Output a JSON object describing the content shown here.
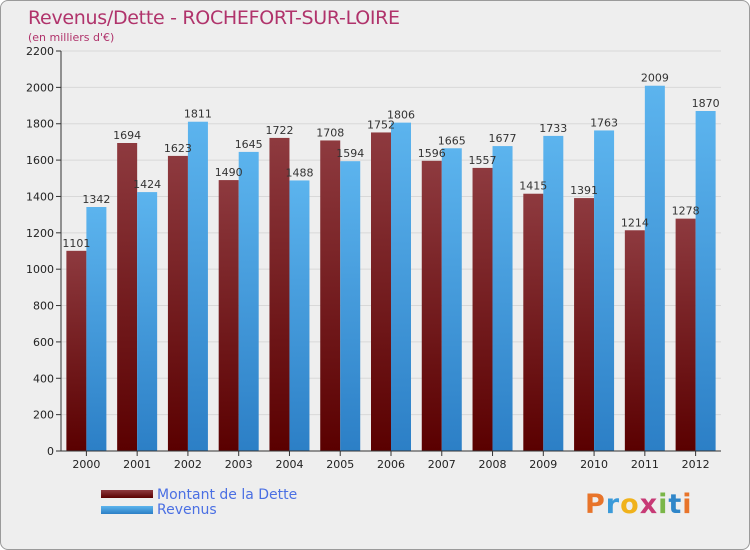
{
  "header": {
    "title": "Revenus/Dette - ROCHEFORT-SUR-LOIRE",
    "subtitle": "(en milliers d'€)"
  },
  "legend": {
    "debt_label": "Montant de la Dette",
    "revenue_label": "Revenus"
  },
  "logo": {
    "letters": [
      "P",
      "r",
      "o",
      "x",
      "i",
      "t",
      "i"
    ]
  },
  "colors": {
    "title": "#b0336b",
    "debt_top": "#8e3a3f",
    "debt_bottom": "#5a0000",
    "revenue_top": "#5cb4ee",
    "revenue_bottom": "#2c7fc6",
    "legend_text": "#4a6fe3",
    "logo": [
      "#e8742a",
      "#3a9ad9",
      "#f0b21b",
      "#c73a76",
      "#7ab648",
      "#2f86c9",
      "#e8742a"
    ]
  },
  "chart_data": {
    "type": "bar",
    "title": "Revenus/Dette - ROCHEFORT-SUR-LOIRE",
    "ylabel": "(en milliers d'€)",
    "xlabel": "",
    "categories": [
      "2000",
      "2001",
      "2002",
      "2003",
      "2004",
      "2005",
      "2006",
      "2007",
      "2008",
      "2009",
      "2010",
      "2011",
      "2012"
    ],
    "ylim": [
      0,
      2200
    ],
    "yticks": [
      0,
      200,
      400,
      600,
      800,
      1000,
      1200,
      1400,
      1600,
      1800,
      2000,
      2200
    ],
    "grid": true,
    "series": [
      {
        "name": "Montant de la Dette",
        "values": [
          1101,
          1694,
          1623,
          1490,
          1722,
          1708,
          1752,
          1596,
          1557,
          1415,
          1391,
          1214,
          1278
        ]
      },
      {
        "name": "Revenus",
        "values": [
          1342,
          1424,
          1811,
          1645,
          1488,
          1594,
          1806,
          1665,
          1677,
          1733,
          1763,
          2009,
          1870
        ]
      }
    ]
  }
}
